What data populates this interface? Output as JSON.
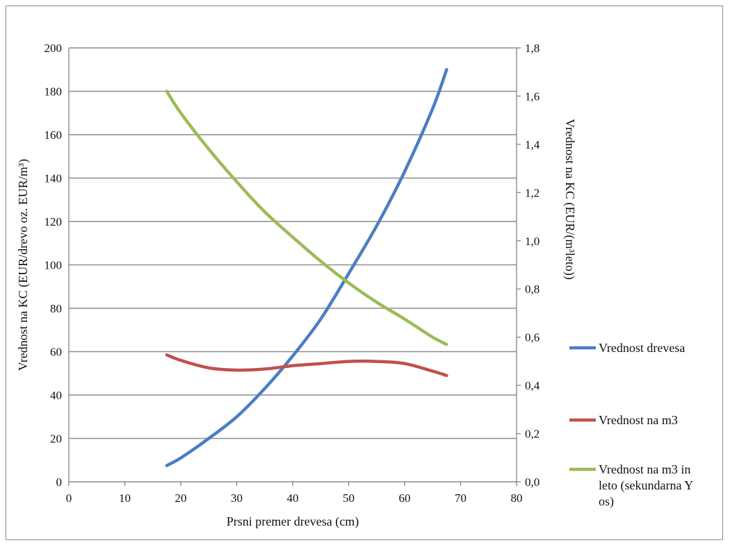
{
  "chart_data": {
    "type": "line",
    "xlabel": "Prsni premer drevesa (cm)",
    "ylabel": "Vrednost na KC (EUR/drevo oz. EUR/m³)",
    "y2label": "Vrednost na KC (EUR/(m³leto))",
    "xlim": [
      0,
      80
    ],
    "ylim": [
      0,
      200
    ],
    "y2lim": [
      0,
      1.8
    ],
    "x_ticks": [
      "0",
      "10",
      "20",
      "30",
      "40",
      "50",
      "60",
      "70",
      "80"
    ],
    "y_ticks": [
      "0",
      "20",
      "40",
      "60",
      "80",
      "100",
      "120",
      "140",
      "160",
      "180",
      "200"
    ],
    "y2_ticks": [
      "0,0",
      "0,2",
      "0,4",
      "0,6",
      "0,8",
      "1,0",
      "1,2",
      "1,4",
      "1,6",
      "1,8"
    ],
    "grid": true,
    "legend_position": "right",
    "series": [
      {
        "name": "Vrednost drevesa",
        "axis": "primary",
        "color": "#4a7ec4",
        "x": [
          17.5,
          20,
          25,
          30,
          35,
          40,
          45,
          50,
          55,
          60,
          65,
          67.5
        ],
        "y": [
          7.5,
          11,
          20,
          30,
          43,
          58,
          75,
          96,
          118,
          143,
          172,
          190
        ]
      },
      {
        "name": "Vrednost na m3",
        "axis": "primary",
        "color": "#c0504d",
        "x": [
          17.5,
          20,
          25,
          30,
          35,
          40,
          45,
          50,
          55,
          60,
          65,
          67.5
        ],
        "y": [
          58.5,
          56,
          52.5,
          51.5,
          52,
          53.5,
          54.5,
          55.5,
          55.5,
          54.5,
          51,
          49
        ]
      },
      {
        "name": "Vrednost na m3 in leto (sekundarna Y os)",
        "axis": "secondary",
        "legend_lines": [
          "Vrednost na m3 in",
          "leto (sekundarna Y",
          "os)"
        ],
        "color": "#9bbb59",
        "x": [
          17.5,
          20,
          25,
          30,
          35,
          40,
          45,
          50,
          55,
          60,
          65,
          67.5
        ],
        "y": [
          1.62,
          1.53,
          1.38,
          1.245,
          1.12,
          1.015,
          0.915,
          0.825,
          0.745,
          0.675,
          0.6,
          0.57
        ]
      }
    ]
  }
}
